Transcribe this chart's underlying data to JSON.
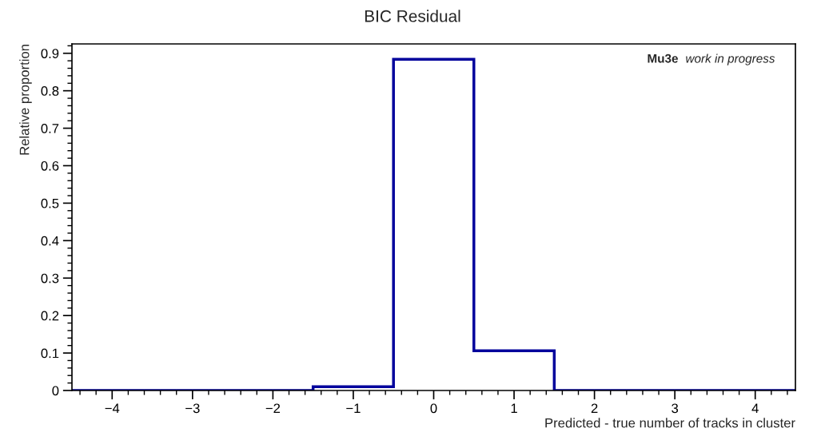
{
  "chart_data": {
    "type": "histogram",
    "title": "BIC Residual",
    "xlabel": "Predicted - true number of tracks in cluster",
    "ylabel": "Relative proportion",
    "bins": [
      -4.5,
      -3.5,
      -2.5,
      -1.5,
      -0.5,
      0.5,
      1.5,
      2.5,
      3.5,
      4.5
    ],
    "values": [
      0,
      0,
      0,
      0.01,
      0.884,
      0.106,
      0,
      0,
      0
    ],
    "color": "#00009c",
    "xlim": [
      -4.5,
      4.5
    ],
    "ylim": [
      0,
      0.925
    ],
    "xticks": [
      {
        "value": -4,
        "label": "−4"
      },
      {
        "value": -3,
        "label": "−3"
      },
      {
        "value": -2,
        "label": "−2"
      },
      {
        "value": -1,
        "label": "−1"
      },
      0,
      1,
      2,
      3,
      4
    ],
    "yticks": [
      0,
      0.1,
      0.2,
      0.3,
      0.4,
      0.5,
      0.6,
      0.7,
      0.8,
      0.9
    ],
    "annotations": [
      "Mu3e",
      "work in progress"
    ],
    "grid": false,
    "legend": false
  }
}
